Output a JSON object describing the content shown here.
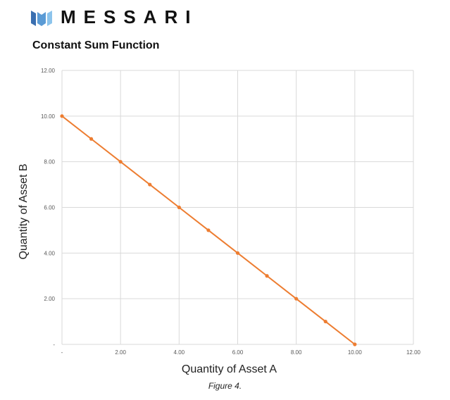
{
  "brand": {
    "name": "MESSARI",
    "logo_icon": "messari-logo-icon",
    "logo_colors": [
      "#3a6fb0",
      "#5b9bd5",
      "#8cc4ec"
    ]
  },
  "caption": "Figure 4.",
  "chart_data": {
    "type": "line",
    "title": "Constant Sum Function",
    "xlabel": "Quantity of Asset A",
    "ylabel": "Quantity of Asset B",
    "xlim": [
      0,
      12
    ],
    "ylim": [
      0,
      12
    ],
    "grid": true,
    "legend": "none",
    "x_ticks": [
      "-",
      "2.00",
      "4.00",
      "6.00",
      "8.00",
      "10.00",
      "12.00"
    ],
    "y_ticks": [
      "-",
      "2.00",
      "4.00",
      "6.00",
      "8.00",
      "10.00",
      "12.00"
    ],
    "series": [
      {
        "color": "#ed7d31",
        "x": [
          0,
          1,
          2,
          3,
          4,
          5,
          6,
          7,
          8,
          9,
          10
        ],
        "y": [
          10,
          9,
          8,
          7,
          6,
          5,
          4,
          3,
          2,
          1,
          0
        ]
      }
    ],
    "grid_color": "#d9d9d9"
  }
}
